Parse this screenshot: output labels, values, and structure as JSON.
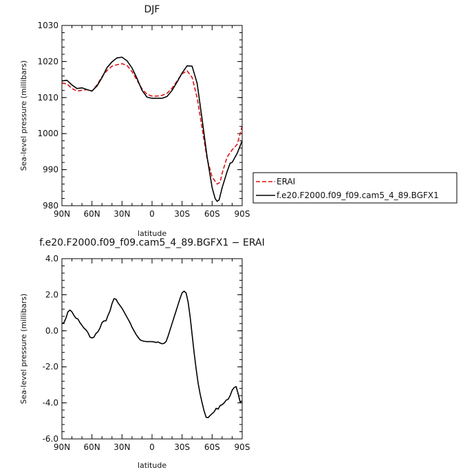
{
  "chart_data": [
    {
      "type": "line",
      "title": "DJF",
      "xlabel": "latitude",
      "ylabel": "Sea-level pressure (millibars)",
      "ylim": [
        980,
        1030
      ],
      "xlim": [
        90,
        -90
      ],
      "xticks": [
        90,
        60,
        30,
        0,
        -30,
        -60,
        -90
      ],
      "xtick_labels": [
        "90N",
        "60N",
        "30N",
        "0",
        "30S",
        "60S",
        "90S"
      ],
      "yticks": [
        980,
        990,
        1000,
        1010,
        1020,
        1030
      ],
      "ytick_labels": [
        "980",
        "990",
        "1000",
        "1010",
        "1020",
        "1030"
      ],
      "legend_position": "right",
      "series": [
        {
          "name": "ERAI",
          "color": "#dd1111",
          "dash": "dashed",
          "x": [
            90,
            85,
            80,
            75,
            70,
            65,
            60,
            55,
            50,
            45,
            40,
            35,
            30,
            25,
            20,
            15,
            10,
            5,
            0,
            -5,
            -10,
            -15,
            -20,
            -25,
            -30,
            -35,
            -40,
            -45,
            -50,
            -55,
            -60,
            -65,
            -68,
            -70,
            -75,
            -80,
            -85,
            -90
          ],
          "values": [
            1014.0,
            1013.8,
            1012.5,
            1011.8,
            1012.0,
            1012.2,
            1011.8,
            1013.5,
            1015.8,
            1017.5,
            1018.7,
            1019.1,
            1019.4,
            1018.9,
            1017.2,
            1014.8,
            1012.4,
            1010.9,
            1010.4,
            1010.4,
            1010.6,
            1011.2,
            1012.6,
            1014.6,
            1016.6,
            1017.4,
            1015.6,
            1010.0,
            1001.5,
            993.0,
            988.0,
            986.0,
            986.5,
            989.0,
            993.5,
            995.5,
            997.0,
            1002.0
          ]
        },
        {
          "name": "f.e20.F2000.f09_f09.cam5_4_89.BGFX1",
          "color": "#000000",
          "dash": "solid",
          "x": [
            90,
            85,
            80,
            75,
            70,
            65,
            60,
            55,
            50,
            45,
            40,
            35,
            30,
            25,
            20,
            15,
            10,
            5,
            0,
            -5,
            -10,
            -15,
            -20,
            -25,
            -30,
            -35,
            -40,
            -45,
            -50,
            -55,
            -60,
            -63,
            -65,
            -67,
            -70,
            -75,
            -78,
            -80,
            -85,
            -90
          ],
          "values": [
            1014.6,
            1014.8,
            1013.5,
            1012.5,
            1012.7,
            1012.2,
            1011.8,
            1013.2,
            1015.5,
            1018.3,
            1019.9,
            1021.0,
            1021.2,
            1020.2,
            1018.2,
            1015.3,
            1012.0,
            1010.1,
            1009.8,
            1009.8,
            1009.8,
            1010.3,
            1012.0,
            1014.3,
            1016.8,
            1018.8,
            1018.7,
            1014.0,
            1004.0,
            993.5,
            985.0,
            982.0,
            981.2,
            981.6,
            985.0,
            989.5,
            991.8,
            992.0,
            994.5,
            998.0
          ]
        }
      ]
    },
    {
      "type": "line",
      "title": "f.e20.F2000.f09_f09.cam5_4_89.BGFX1 − ERAI",
      "xlabel": "latitude",
      "ylabel": "Sea-level pressure (millibars)",
      "ylim": [
        -6,
        4
      ],
      "xlim": [
        90,
        -90
      ],
      "xticks": [
        90,
        60,
        30,
        0,
        -30,
        -60,
        -90
      ],
      "xtick_labels": [
        "90N",
        "60N",
        "30N",
        "0",
        "30S",
        "60S",
        "90S"
      ],
      "yticks": [
        -6,
        -4,
        -2,
        0,
        2,
        4
      ],
      "ytick_labels": [
        "-6.0",
        "-4.0",
        "-2.0",
        "0.0",
        "2.0",
        "4.0"
      ],
      "series": [
        {
          "color": "#000000",
          "dash": "solid",
          "x": [
            90,
            88,
            86,
            84,
            82,
            80,
            78,
            76,
            74,
            72,
            70,
            68,
            66,
            64,
            62,
            60,
            58,
            56,
            54,
            52,
            50,
            48,
            46,
            44,
            42,
            40,
            38,
            36,
            34,
            32,
            30,
            28,
            26,
            24,
            22,
            20,
            18,
            16,
            14,
            12,
            10,
            8,
            6,
            4,
            2,
            0,
            -2,
            -4,
            -6,
            -8,
            -10,
            -12,
            -14,
            -16,
            -18,
            -20,
            -22,
            -24,
            -26,
            -28,
            -30,
            -32,
            -34,
            -36,
            -38,
            -40,
            -42,
            -44,
            -46,
            -48,
            -50,
            -52,
            -54,
            -56,
            -58,
            -60,
            -62,
            -64,
            -66,
            -68,
            -70,
            -72,
            -74,
            -76,
            -78,
            -80,
            -82,
            -84,
            -86,
            -88,
            -90
          ],
          "values": [
            0.4,
            0.45,
            0.7,
            1.05,
            1.15,
            1.05,
            0.85,
            0.7,
            0.65,
            0.45,
            0.3,
            0.15,
            0.05,
            -0.1,
            -0.35,
            -0.4,
            -0.35,
            -0.15,
            -0.05,
            0.15,
            0.45,
            0.55,
            0.55,
            0.85,
            1.1,
            1.5,
            1.78,
            1.75,
            1.55,
            1.4,
            1.25,
            1.05,
            0.85,
            0.65,
            0.45,
            0.2,
            0.0,
            -0.2,
            -0.35,
            -0.5,
            -0.55,
            -0.58,
            -0.6,
            -0.6,
            -0.6,
            -0.6,
            -0.62,
            -0.65,
            -0.62,
            -0.68,
            -0.72,
            -0.7,
            -0.6,
            -0.3,
            0.05,
            0.4,
            0.75,
            1.1,
            1.45,
            1.8,
            2.1,
            2.2,
            2.1,
            1.6,
            0.8,
            -0.2,
            -1.2,
            -2.1,
            -2.9,
            -3.5,
            -4.0,
            -4.45,
            -4.8,
            -4.82,
            -4.7,
            -4.6,
            -4.5,
            -4.3,
            -4.35,
            -4.15,
            -4.1,
            -4.0,
            -3.85,
            -3.8,
            -3.6,
            -3.3,
            -3.15,
            -3.1,
            -3.5,
            -3.95,
            -3.9
          ]
        }
      ]
    }
  ]
}
